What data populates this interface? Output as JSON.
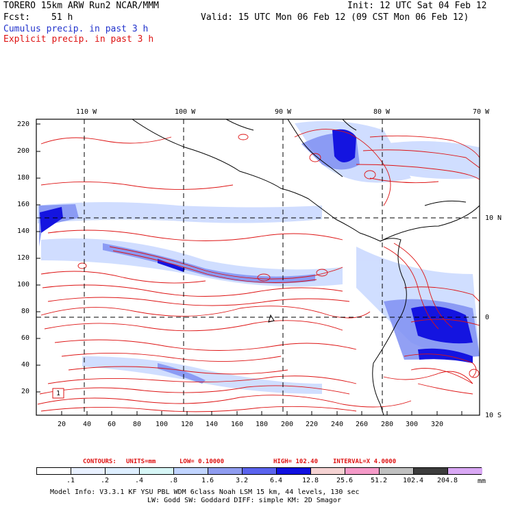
{
  "header": {
    "model": "TORERO  15km ARW   Run2   NCAR/MMM",
    "init": "Init: 12 UTC Sat 04 Feb 12",
    "fcst_label": "Fcst:",
    "fcst_hours": "51 h",
    "valid": "Valid: 15 UTC Mon 06 Feb 12 (09 CST Mon 06 Feb 12)",
    "legend_cumulus": "Cumulus precip. in past 3 h",
    "legend_explicit": "Explicit precip. in past 3 h"
  },
  "map": {
    "top_lon_labels": [
      "110 W",
      "100 W",
      "90 W",
      "80 W",
      "70 W"
    ],
    "right_lat_labels": [
      "10 N",
      "0",
      "10 S"
    ],
    "y_ticks": [
      "220",
      "200",
      "180",
      "160",
      "140",
      "120",
      "100",
      "80",
      "60",
      "40",
      "20"
    ],
    "x_ticks": [
      "20",
      "40",
      "60",
      "80",
      "100",
      "120",
      "140",
      "160",
      "180",
      "200",
      "220",
      "240",
      "260",
      "280",
      "300",
      "320"
    ],
    "box_label": "1"
  },
  "contours_line": {
    "label": "CONTOURS:",
    "units": "UNITS=mm",
    "low": "LOW= 0.10000",
    "high": "HIGH= 102.40",
    "interval": "INTERVAL=X  4.0000"
  },
  "colorbar": {
    "labels": [
      ".1",
      ".2",
      ".4",
      ".8",
      "1.6",
      "3.2",
      "6.4",
      "12.8",
      "25.6",
      "51.2",
      "102.4",
      "204.8"
    ],
    "unit": "mm",
    "colors": [
      "#ffffff",
      "#e8f0ff",
      "#ddeeff",
      "#d6f6f6",
      "#c0d4ff",
      "#8f9cf0",
      "#5a63ee",
      "#1010e0",
      "#f5d2d2",
      "#f59ac8",
      "#c0c0c0",
      "#3c3c3c",
      "#d9a8f4"
    ]
  },
  "footer": {
    "line1": "Model Info: V3.3.1   KF     YSU PBL  WDM 6class  Noah LSM  15 km,   44 levels,  130 sec",
    "line2": "LW: Godd SW: Goddard DIFF: simple KM: 2D Smagor"
  }
}
